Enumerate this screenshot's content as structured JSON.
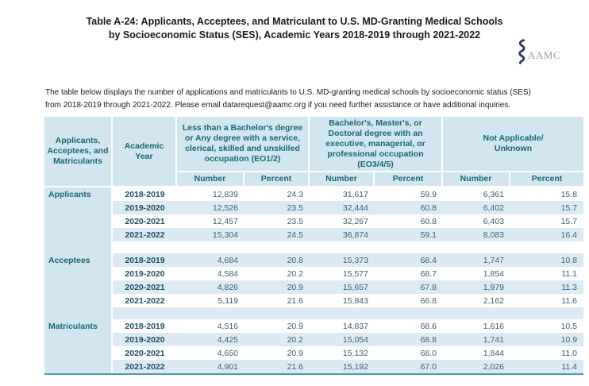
{
  "page": {
    "title": "Table A-24: Applicants, Acceptees, and Matriculant to U.S. MD-Granting Medical Schools\nby Socioeconomic Status (SES), Academic Years 2018-2019 through 2021-2022"
  },
  "logo": {
    "text": "AAMC",
    "icon": "serpent-staff-icon"
  },
  "intro": {
    "text": "The table below displays the number of applications and matriculants to U.S. MD-granting medical schools by socioeconomic status (SES)\nfrom 2018-2019 through 2021-2022. Please email datarequest@aamc.org if you need further assistance or have additional inquiries."
  },
  "table": {
    "corner_header": "Applicants,\nAcceptees, and\nMatriculants",
    "year_header": "Academic\nYear",
    "groups": [
      "Less than a Bachelor's degree\nor Any degree with a service,\nclerical, skilled and unskilled\noccupation (EO1/2)",
      "Bachelor's, Master's, or\nDoctoral degree with an\nexecutive, managerial, or\nprofessional occupation\n(EO3/4/5)",
      "Not Applicable/\nUnknown"
    ],
    "subheaders": [
      "Number",
      "Percent",
      "Number",
      "Percent",
      "Number",
      "Percent"
    ],
    "sections": [
      {
        "label": "Applicants",
        "rows": [
          {
            "year": "2018-2019",
            "values": [
              "12,839",
              "24.3",
              "31,617",
              "59.9",
              "6,361",
              "15.8"
            ]
          },
          {
            "year": "2019-2020",
            "values": [
              "12,526",
              "23.5",
              "32,444",
              "60.8",
              "6,402",
              "15.7"
            ]
          },
          {
            "year": "2020-2021",
            "values": [
              "12,457",
              "23.5",
              "32,267",
              "60.8",
              "6,403",
              "15.7"
            ]
          },
          {
            "year": "2021-2022",
            "values": [
              "15,304",
              "24.5",
              "36,874",
              "59.1",
              "8,083",
              "16.4"
            ]
          }
        ]
      },
      {
        "label": "Acceptees",
        "rows": [
          {
            "year": "2018-2019",
            "values": [
              "4,684",
              "20.8",
              "15,373",
              "68.4",
              "1,747",
              "10.8"
            ]
          },
          {
            "year": "2019-2020",
            "values": [
              "4,584",
              "20.2",
              "15,577",
              "68.7",
              "1,854",
              "11.1"
            ]
          },
          {
            "year": "2020-2021",
            "values": [
              "4,826",
              "20.9",
              "15,657",
              "67.8",
              "1,979",
              "11.3"
            ]
          },
          {
            "year": "2021-2022",
            "values": [
              "5,119",
              "21.6",
              "15,843",
              "66.8",
              "2,162",
              "11.6"
            ]
          }
        ]
      },
      {
        "label": "Matriculants",
        "rows": [
          {
            "year": "2018-2019",
            "values": [
              "4,516",
              "20.9",
              "14,837",
              "68.6",
              "1,616",
              "10.5"
            ]
          },
          {
            "year": "2019-2020",
            "values": [
              "4,425",
              "20.2",
              "15,054",
              "68.8",
              "1,741",
              "10.9"
            ]
          },
          {
            "year": "2020-2021",
            "values": [
              "4,650",
              "20.9",
              "15,132",
              "68.0",
              "1,844",
              "11.0"
            ]
          },
          {
            "year": "2021-2022",
            "values": [
              "4,901",
              "21.6",
              "15,192",
              "67.0",
              "2,026",
              "11.4"
            ]
          }
        ]
      }
    ]
  },
  "colors": {
    "header_background": "#d2e6ef",
    "stripe_background": "#dcebf3",
    "header_text": "#176878",
    "year_text": "#1d4f63",
    "value_text": "#3c5e6e",
    "table_bottom_border": "#5198ae",
    "logo_navy": "#232c5e",
    "logo_gray": "#9b9b9b"
  }
}
